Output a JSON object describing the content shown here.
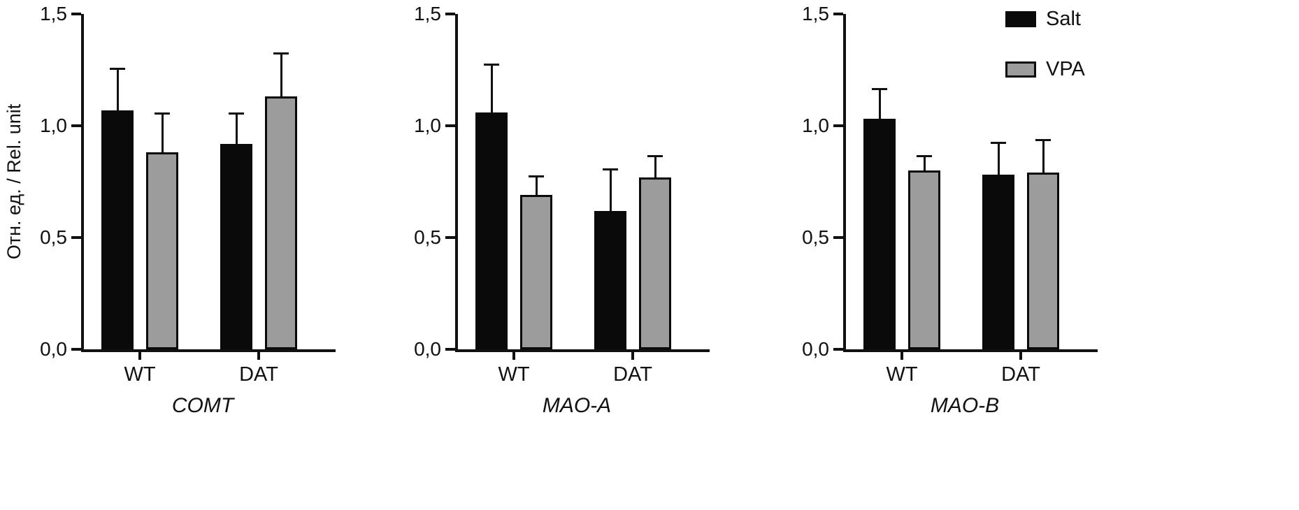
{
  "figure": {
    "ylabel": "Отн. ед. / Rel. unit",
    "colors": {
      "salt": "#0a0a0a",
      "vpa": "#9c9c9c",
      "axis": "#111111",
      "background": "#ffffff"
    },
    "legend": [
      {
        "label": "Salt",
        "color": "#0a0a0a",
        "border": "#0a0a0a"
      },
      {
        "label": "VPA",
        "color": "#9c9c9c",
        "border": "#0a0a0a"
      }
    ]
  },
  "chart_data": [
    {
      "type": "bar",
      "title": "COMT",
      "categories": [
        "WT",
        "DAT"
      ],
      "series": [
        {
          "name": "Salt",
          "values": [
            1.07,
            0.92
          ],
          "errors": [
            0.18,
            0.13
          ],
          "color": "#0a0a0a",
          "border": "#0a0a0a"
        },
        {
          "name": "VPA",
          "values": [
            0.88,
            1.13
          ],
          "errors": [
            0.17,
            0.19
          ],
          "color": "#9c9c9c",
          "border": "#0a0a0a"
        }
      ],
      "ylim": [
        0,
        1.5
      ],
      "yticks": [
        "0,0",
        "0,5",
        "1,0",
        "1,5"
      ],
      "ytick_values": [
        0,
        0.5,
        1.0,
        1.5
      ],
      "ylabel": "Отн. ед. / Rel. unit",
      "grid": false,
      "legend_position": "top-right-of-figure"
    },
    {
      "type": "bar",
      "title": "MAO-A",
      "categories": [
        "WT",
        "DAT"
      ],
      "series": [
        {
          "name": "Salt",
          "values": [
            1.06,
            0.62
          ],
          "errors": [
            0.21,
            0.18
          ],
          "color": "#0a0a0a",
          "border": "#0a0a0a"
        },
        {
          "name": "VPA",
          "values": [
            0.69,
            0.77
          ],
          "errors": [
            0.08,
            0.09
          ],
          "color": "#9c9c9c",
          "border": "#0a0a0a"
        }
      ],
      "ylim": [
        0,
        1.5
      ],
      "yticks": [
        "0,0",
        "0,5",
        "1,0",
        "1,5"
      ],
      "ytick_values": [
        0,
        0.5,
        1.0,
        1.5
      ],
      "ylabel": "",
      "grid": false,
      "legend_position": "none"
    },
    {
      "type": "bar",
      "title": "MAO-B",
      "categories": [
        "WT",
        "DAT"
      ],
      "series": [
        {
          "name": "Salt",
          "values": [
            1.03,
            0.78
          ],
          "errors": [
            0.13,
            0.14
          ],
          "color": "#0a0a0a",
          "border": "#0a0a0a"
        },
        {
          "name": "VPA",
          "values": [
            0.8,
            0.79
          ],
          "errors": [
            0.06,
            0.14
          ],
          "color": "#9c9c9c",
          "border": "#0a0a0a"
        }
      ],
      "ylim": [
        0,
        1.5
      ],
      "yticks": [
        "0,0",
        "0,5",
        "1,0",
        "1,5"
      ],
      "ytick_values": [
        0,
        0.5,
        1.0,
        1.5
      ],
      "ylabel": "",
      "grid": false,
      "legend_position": "none"
    }
  ]
}
